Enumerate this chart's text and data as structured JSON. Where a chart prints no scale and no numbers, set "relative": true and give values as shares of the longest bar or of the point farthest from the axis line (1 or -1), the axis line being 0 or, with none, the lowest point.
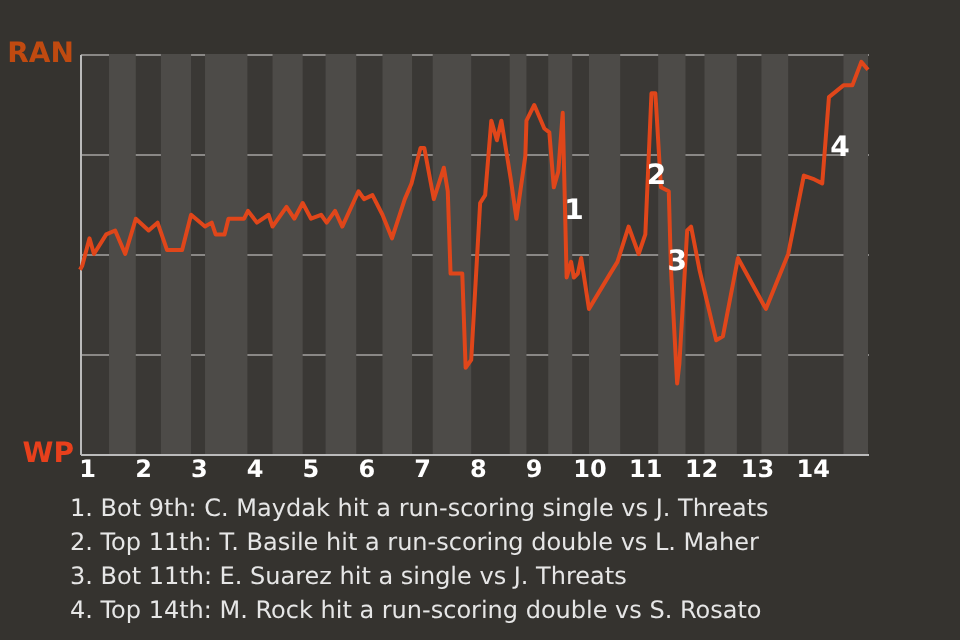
{
  "chart_data": {
    "type": "line",
    "x": [
      0.88,
      0.92,
      1.05,
      1.13,
      1.35,
      1.51,
      1.69,
      1.88,
      2.11,
      2.27,
      2.44,
      2.71,
      2.87,
      3.12,
      3.24,
      3.31,
      3.47,
      3.54,
      3.82,
      3.89,
      4.05,
      4.26,
      4.33,
      4.58,
      4.72,
      4.87,
      5.02,
      5.2,
      5.3,
      5.45,
      5.58,
      5.87,
      5.97,
      6.12,
      6.3,
      6.47,
      6.7,
      6.82,
      6.98,
      7.05,
      7.22,
      7.4,
      7.47,
      7.52,
      7.7,
      7.73,
      7.79,
      7.89,
      8.05,
      8.14,
      8.25,
      8.35,
      8.43,
      8.6,
      8.7,
      8.86,
      8.88,
      9.02,
      9.2,
      9.29,
      9.37,
      9.45,
      9.53,
      9.6,
      9.68,
      9.73,
      9.8,
      9.86,
      10.0,
      10.38,
      10.51,
      10.71,
      10.89,
      11.01,
      11.12,
      11.19,
      11.29,
      11.43,
      11.47,
      11.58,
      11.62,
      11.76,
      11.83,
      11.98,
      12.28,
      12.4,
      12.67,
      13.17,
      13.57,
      13.85,
      14.04,
      14.18,
      14.3,
      14.56,
      14.72,
      14.88,
      15
    ],
    "series": [
      {
        "color": "#e0461a",
        "values": [
          0.47,
          0.48,
          0.55,
          0.51,
          0.56,
          0.57,
          0.51,
          0.6,
          0.57,
          0.59,
          0.52,
          0.52,
          0.61,
          0.58,
          0.59,
          0.56,
          0.56,
          0.6,
          0.6,
          0.62,
          0.59,
          0.61,
          0.58,
          0.63,
          0.6,
          0.64,
          0.6,
          0.61,
          0.59,
          0.62,
          0.58,
          0.67,
          0.65,
          0.66,
          0.61,
          0.55,
          0.65,
          0.69,
          0.78,
          0.78,
          0.65,
          0.73,
          0.67,
          0.46,
          0.46,
          0.46,
          0.22,
          0.24,
          0.64,
          0.66,
          0.85,
          0.8,
          0.85,
          0.7,
          0.6,
          0.76,
          0.85,
          0.89,
          0.83,
          0.82,
          0.68,
          0.72,
          0.87,
          0.45,
          0.49,
          0.45,
          0.46,
          0.5,
          0.37,
          0.46,
          0.49,
          0.58,
          0.51,
          0.56,
          0.92,
          0.92,
          0.68,
          0.67,
          0.47,
          0.18,
          0.23,
          0.57,
          0.58,
          0.47,
          0.29,
          0.3,
          0.5,
          0.37,
          0.51,
          0.71,
          0.7,
          0.69,
          0.91,
          0.94,
          0.94,
          1,
          0.98
        ]
      }
    ],
    "relative": true,
    "xlim": [
      0.88,
      15
    ],
    "xticks": [
      1,
      2,
      3,
      4,
      5,
      6,
      7,
      8,
      9,
      10,
      11,
      12,
      13,
      14
    ],
    "grid": "y",
    "bands": [
      {
        "axis": "x",
        "from": 1.4,
        "to": 1.88,
        "color": "#4d4b48"
      },
      {
        "axis": "x",
        "from": 2.33,
        "to": 2.87,
        "color": "#4d4b48"
      },
      {
        "axis": "x",
        "from": 3.12,
        "to": 3.88,
        "color": "#4d4b48"
      },
      {
        "axis": "x",
        "from": 4.33,
        "to": 4.87,
        "color": "#4d4b48"
      },
      {
        "axis": "x",
        "from": 5.28,
        "to": 5.83,
        "color": "#4d4b48"
      },
      {
        "axis": "x",
        "from": 6.3,
        "to": 6.83,
        "color": "#4d4b48"
      },
      {
        "axis": "x",
        "from": 7.2,
        "to": 7.89,
        "color": "#4d4b48"
      },
      {
        "axis": "x",
        "from": 8.58,
        "to": 8.88,
        "color": "#4d4b48"
      },
      {
        "axis": "x",
        "from": 9.27,
        "to": 9.7,
        "color": "#4d4b48"
      },
      {
        "axis": "x",
        "from": 10.0,
        "to": 10.56,
        "color": "#4d4b48"
      },
      {
        "axis": "x",
        "from": 11.24,
        "to": 11.73,
        "color": "#4d4b48"
      },
      {
        "axis": "x",
        "from": 12.07,
        "to": 12.65,
        "color": "#4d4b48"
      },
      {
        "axis": "x",
        "from": 13.09,
        "to": 13.57,
        "color": "#4d4b48"
      },
      {
        "axis": "x",
        "from": 14.56,
        "to": 15,
        "color": "#4d4b48"
      }
    ],
    "annotations": [
      "RAN",
      "WP",
      {
        "text": "1",
        "x": 9.73,
        "y": 0.62
      },
      {
        "text": "2",
        "x": 11.21,
        "y": 0.71
      },
      {
        "text": "3",
        "x": 11.58,
        "y": 0.49
      },
      {
        "text": "4",
        "x": 14.5,
        "y": 0.78
      },
      "1. Bot 9th: C. Maydak hit a run-scoring single vs J. Threats",
      "2. Top 11th: T. Basile hit a run-scoring double vs L. Maher",
      "3. Bot 11th: E. Suarez hit a single vs J. Threats",
      "4. Top 14th: M. Rock hit a run-scoring double vs S. Rosato"
    ]
  }
}
